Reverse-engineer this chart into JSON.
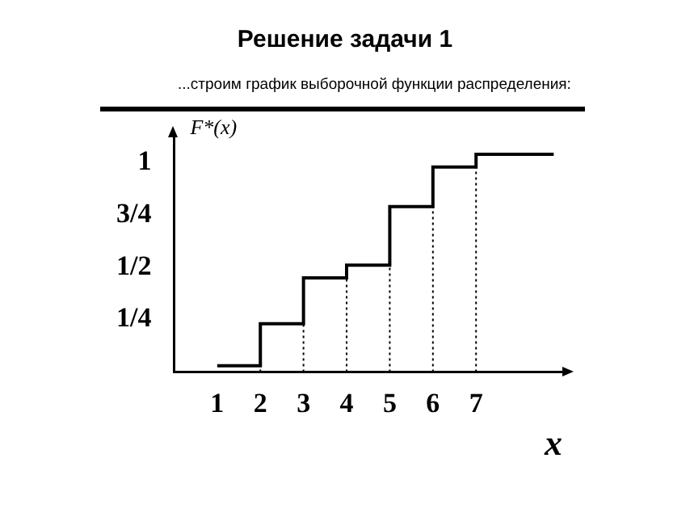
{
  "chart_data": {
    "type": "step",
    "title": "Решение задачи 1",
    "subtitle": "...строим график выборочной функции распределения:",
    "ylabel": "F*(x)",
    "xlabel": "x",
    "x": [
      1,
      2,
      3,
      4,
      5,
      6,
      7,
      8.8
    ],
    "values": [
      0.03,
      0.23,
      0.45,
      0.51,
      0.79,
      0.98,
      1.04,
      1.04
    ],
    "color": "#000000",
    "xlim": [
      0,
      9
    ],
    "ylim": [
      0,
      1.12
    ],
    "xticks": [
      1,
      2,
      3,
      4,
      5,
      6,
      7
    ],
    "yticks": [
      {
        "value": 0.25,
        "label": "1/4"
      },
      {
        "value": 0.5,
        "label": "1/2"
      },
      {
        "value": 0.75,
        "label": "3/4"
      },
      1
    ],
    "ref_lines": [
      {
        "axis": "x",
        "value": 2,
        "line_style": "dotted"
      },
      {
        "axis": "x",
        "value": 3,
        "line_style": "dotted"
      },
      {
        "axis": "x",
        "value": 4,
        "line_style": "dotted"
      },
      {
        "axis": "x",
        "value": 5,
        "line_style": "dotted"
      },
      {
        "axis": "x",
        "value": 6,
        "line_style": "dotted"
      },
      {
        "axis": "x",
        "value": 7,
        "line_style": "dotted"
      }
    ],
    "grid": false,
    "legend": false,
    "marker": "none",
    "line_style": "solid"
  }
}
